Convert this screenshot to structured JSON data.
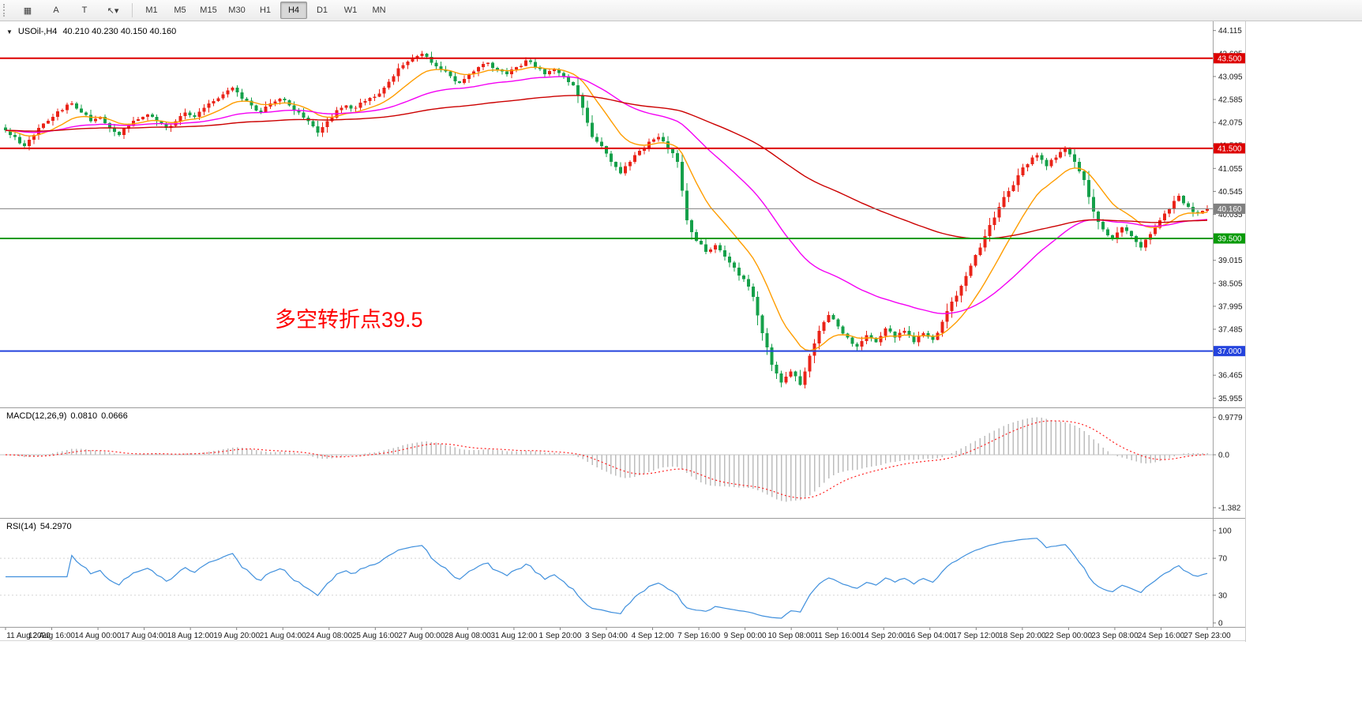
{
  "toolbar": {
    "tools": [
      {
        "name": "grid-icon",
        "glyph": "▦"
      },
      {
        "name": "annotation-a-icon",
        "glyph": "A"
      },
      {
        "name": "text-tool-t-icon",
        "glyph": "T"
      },
      {
        "name": "cursor-tool-icon",
        "glyph": "↖▾"
      }
    ],
    "timeframes": [
      "M1",
      "M5",
      "M15",
      "M30",
      "H1",
      "H4",
      "D1",
      "W1",
      "MN"
    ],
    "active_timeframe": "H4"
  },
  "chart": {
    "dropdown_glyph": "▼",
    "symbol_label": "USOil-,H4",
    "ohlc_label": "40.210 40.230 40.150 40.160",
    "annotation": "多空转折点39.5",
    "colors": {
      "up": "#ea2318",
      "down": "#15a04a",
      "ma_fast": "#ff9d00",
      "ma_mid": "#f400f4",
      "ma_slow": "#cc0000",
      "macd_hist": "#bdbdbd",
      "macd_signal": "#ff2020",
      "rsi": "#4090dd"
    },
    "levels": [
      {
        "name": "resistance-43500",
        "value": 43.5,
        "label": "43.500",
        "color": "#dd0000",
        "width": 2
      },
      {
        "name": "resistance-41500",
        "value": 41.5,
        "label": "41.500",
        "color": "#dd0000",
        "width": 2
      },
      {
        "name": "support-39500",
        "value": 39.5,
        "label": "39.500",
        "color": "#0a9b0a",
        "width": 2
      },
      {
        "name": "support-37000",
        "value": 37.0,
        "label": "37.000",
        "color": "#2443dd",
        "width": 2
      },
      {
        "name": "current-price-line",
        "value": 40.16,
        "label": "40.160",
        "color": "#808080",
        "width": 1
      }
    ],
    "y_ticks": [
      44.115,
      43.605,
      43.095,
      42.585,
      42.075,
      41.565,
      41.055,
      40.545,
      40.035,
      39.525,
      39.015,
      38.505,
      37.995,
      37.485,
      36.975,
      36.465,
      35.955
    ]
  },
  "macd": {
    "title": "MACD(12,26,9)",
    "value_main": "0.0810",
    "value_signal": "0.0666",
    "axis_max": "0.9779",
    "axis_zero": "0.0",
    "axis_min": "-1.382"
  },
  "rsi": {
    "title": "RSI(14)",
    "value": "54.2970",
    "axis": [
      100,
      70,
      30,
      0
    ],
    "levels": [
      70,
      30
    ]
  },
  "chart_data": {
    "type": "candlestick",
    "symbol": "USOil-",
    "timeframe": "H4",
    "ohlc_current": {
      "open": 40.21,
      "high": 40.23,
      "low": 40.15,
      "close": 40.16
    },
    "price_axis_range": [
      35.955,
      44.115
    ],
    "x_labels": [
      "11 Aug 2020",
      "12 Aug 16:00",
      "14 Aug 00:00",
      "17 Aug 04:00",
      "18 Aug 12:00",
      "19 Aug 20:00",
      "21 Aug 04:00",
      "24 Aug 08:00",
      "25 Aug 16:00",
      "27 Aug 00:00",
      "28 Aug 08:00",
      "31 Aug 12:00",
      "1 Sep 20:00",
      "3 Sep 04:00",
      "4 Sep 12:00",
      "7 Sep 16:00",
      "9 Sep 00:00",
      "10 Sep 08:00",
      "11 Sep 16:00",
      "14 Sep 20:00",
      "16 Sep 04:00",
      "17 Sep 12:00",
      "18 Sep 20:00",
      "22 Sep 00:00",
      "23 Sep 08:00",
      "24 Sep 16:00",
      "27 Sep 23:00"
    ],
    "moving_averages": [
      {
        "name": "ma-fast-orange",
        "period": 13,
        "color": "#ff9d00"
      },
      {
        "name": "ma-mid-magenta",
        "period": 45,
        "color": "#f400f4"
      },
      {
        "name": "ma-slow-red",
        "period": 130,
        "color": "#cc0000"
      }
    ],
    "anchor_closes": [
      41.9,
      41.75,
      41.55,
      41.8,
      42.05,
      42.2,
      42.35,
      42.5,
      42.3,
      42.1,
      42.2,
      41.95,
      41.8,
      42.0,
      42.15,
      42.25,
      42.1,
      41.95,
      42.1,
      42.3,
      42.2,
      42.4,
      42.55,
      42.7,
      42.85,
      42.6,
      42.45,
      42.3,
      42.5,
      42.6,
      42.45,
      42.3,
      42.1,
      41.85,
      42.1,
      42.35,
      42.45,
      42.4,
      42.55,
      42.65,
      42.85,
      43.1,
      43.35,
      43.5,
      43.6,
      43.4,
      43.25,
      43.1,
      42.95,
      43.15,
      43.3,
      43.4,
      43.25,
      43.15,
      43.3,
      43.45,
      43.3,
      43.15,
      43.25,
      43.1,
      42.9,
      42.4,
      41.75,
      41.55,
      41.2,
      40.95,
      41.2,
      41.45,
      41.65,
      41.75,
      41.5,
      41.2,
      39.9,
      39.45,
      39.2,
      39.35,
      39.1,
      38.85,
      38.6,
      38.2,
      37.4,
      36.7,
      36.3,
      36.55,
      36.25,
      36.9,
      37.45,
      37.8,
      37.55,
      37.3,
      37.1,
      37.35,
      37.2,
      37.5,
      37.3,
      37.45,
      37.2,
      37.4,
      37.25,
      37.65,
      38.1,
      38.45,
      38.9,
      39.3,
      39.8,
      40.2,
      40.55,
      40.9,
      41.15,
      41.35,
      41.1,
      41.3,
      41.5,
      41.2,
      40.8,
      40.1,
      39.7,
      39.5,
      39.75,
      39.55,
      39.3,
      39.6,
      39.9,
      40.15,
      40.45,
      40.2,
      40.05,
      40.16
    ]
  }
}
